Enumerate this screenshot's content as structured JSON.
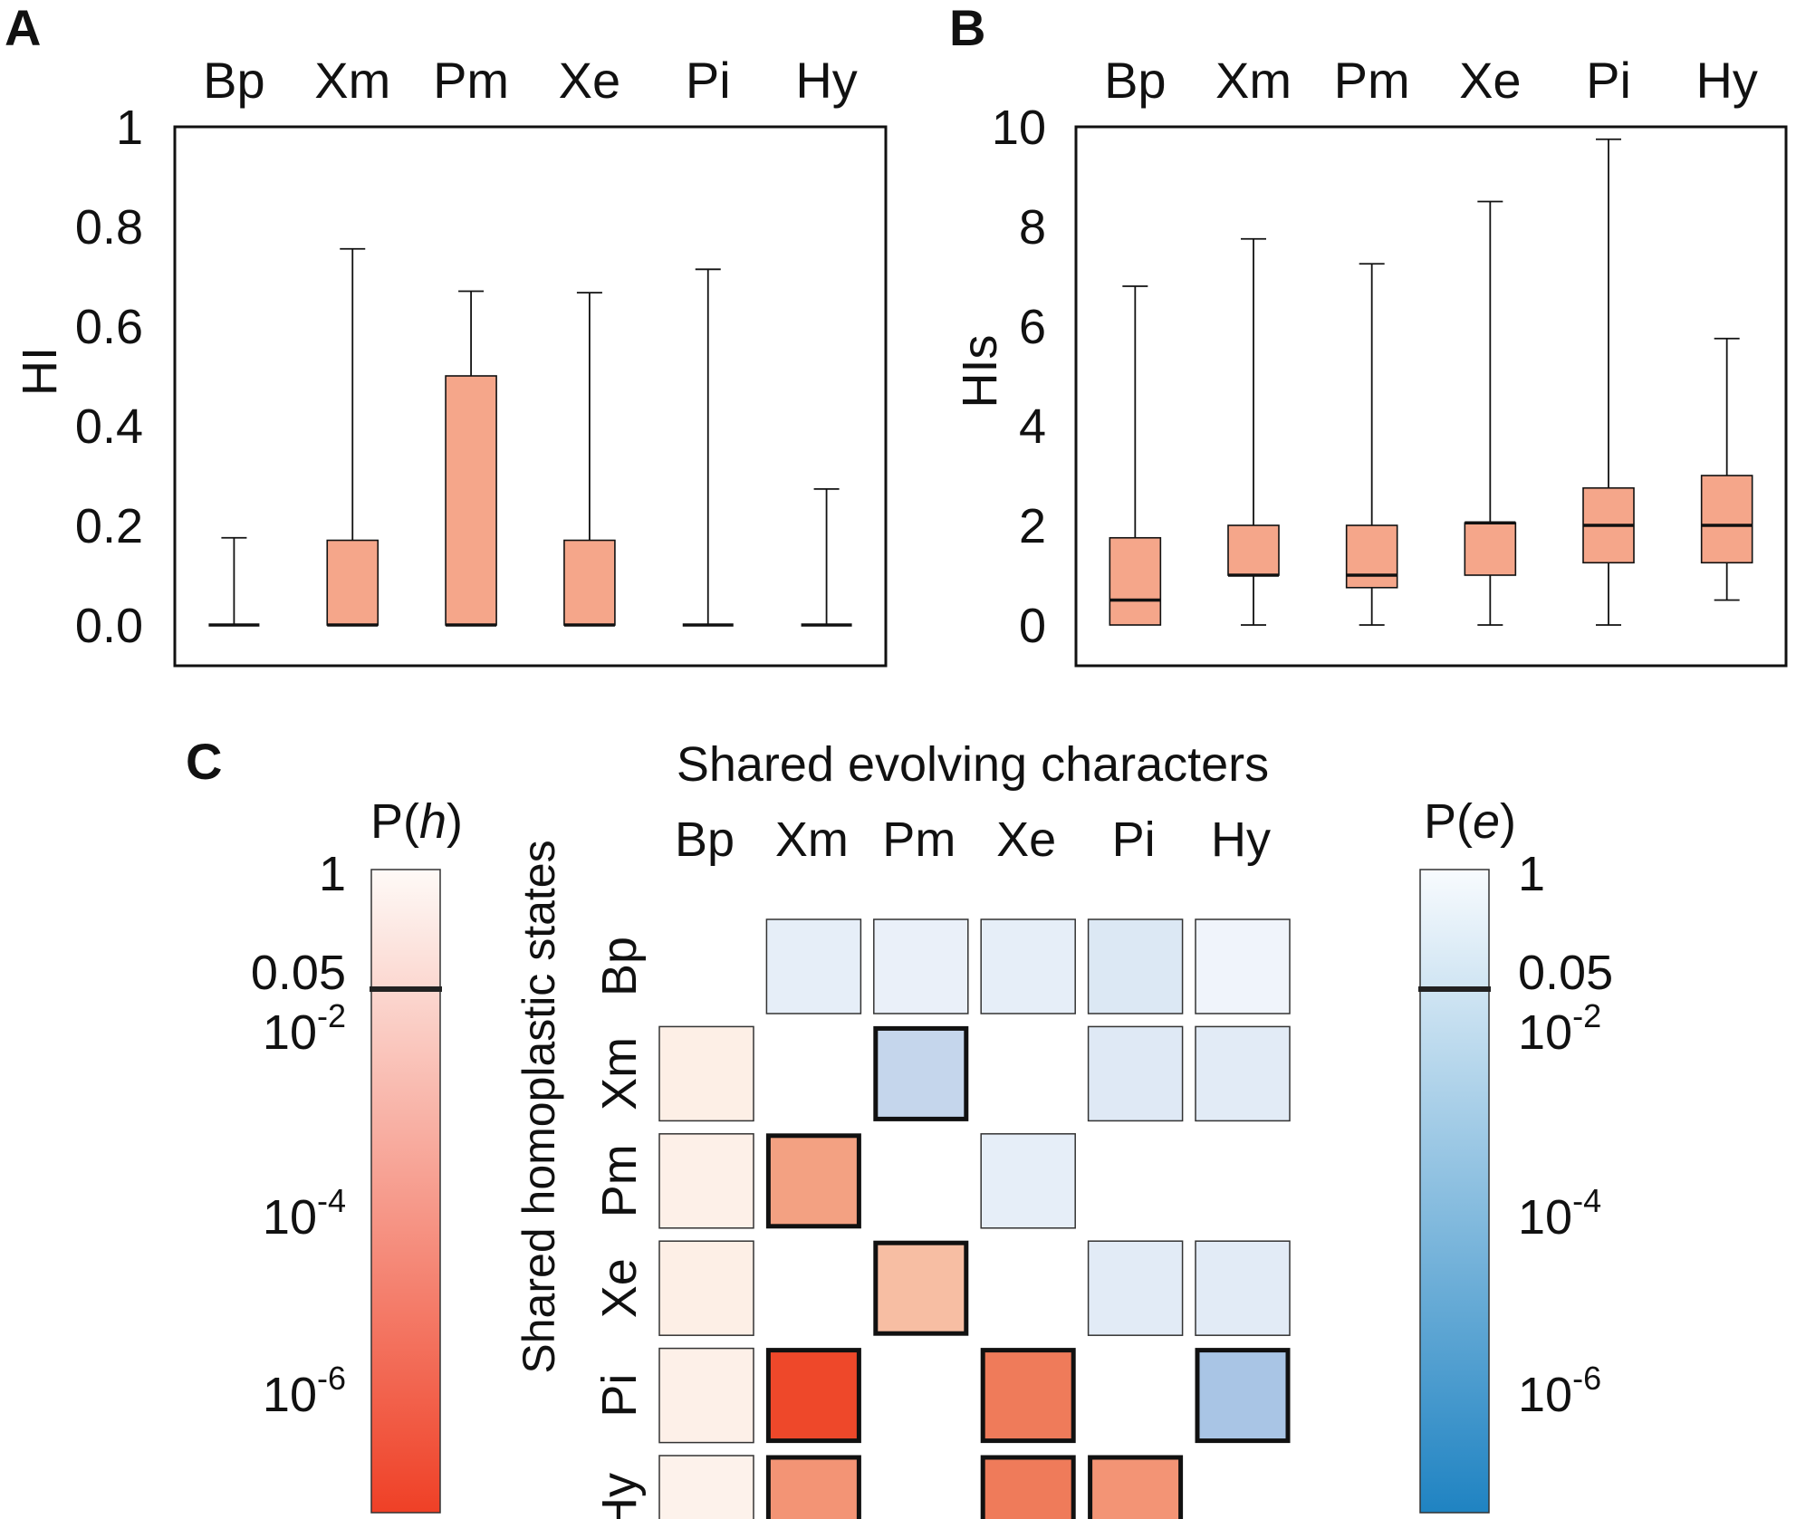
{
  "chart_data": [
    {
      "panel": "A",
      "type": "box",
      "categories": [
        "Bp",
        "Xm",
        "Pm",
        "Xe",
        "Pi",
        "Hy"
      ],
      "ylabel": "HI",
      "ylim": [
        0,
        1
      ],
      "yticks": [
        "0.0",
        "0.2",
        "0.4",
        "0.6",
        "0.8",
        "1"
      ],
      "ytick_values": [
        0,
        0.2,
        0.4,
        0.6,
        0.8,
        1
      ],
      "boxes": [
        {
          "min": 0,
          "q1": 0,
          "median": 0,
          "q3": 0,
          "max": 0.175
        },
        {
          "min": 0,
          "q1": 0,
          "median": 0,
          "q3": 0.17,
          "max": 0.755
        },
        {
          "min": 0,
          "q1": 0,
          "median": 0,
          "q3": 0.5,
          "max": 0.67
        },
        {
          "min": 0,
          "q1": 0,
          "median": 0,
          "q3": 0.17,
          "max": 0.667
        },
        {
          "min": 0,
          "q1": 0,
          "median": 0,
          "q3": 0,
          "max": 0.714
        },
        {
          "min": 0,
          "q1": 0,
          "median": 0,
          "q3": 0,
          "max": 0.273
        }
      ]
    },
    {
      "panel": "B",
      "type": "box",
      "categories": [
        "Bp",
        "Xm",
        "Pm",
        "Xe",
        "Pi",
        "Hy"
      ],
      "ylabel": "HIs",
      "ylim": [
        0,
        10
      ],
      "yticks": [
        "0",
        "2",
        "4",
        "6",
        "8",
        "10"
      ],
      "ytick_values": [
        0,
        2,
        4,
        6,
        8,
        10
      ],
      "boxes": [
        {
          "min": 0,
          "q1": 0,
          "median": 0.5,
          "q3": 1.75,
          "max": 6.8
        },
        {
          "min": 0,
          "q1": 1.0,
          "median": 1.0,
          "q3": 2.0,
          "max": 7.75
        },
        {
          "min": 0,
          "q1": 0.75,
          "median": 1.0,
          "q3": 2.0,
          "max": 7.25
        },
        {
          "min": 0,
          "q1": 1.0,
          "median": 2.05,
          "q3": 2.05,
          "max": 8.5
        },
        {
          "min": 0,
          "q1": 1.25,
          "median": 2.0,
          "q3": 2.75,
          "max": 9.75
        },
        {
          "min": 0.5,
          "q1": 1.25,
          "median": 2.0,
          "q3": 3.0,
          "max": 5.75
        }
      ]
    },
    {
      "panel": "C",
      "type": "heatmap",
      "title": "Shared evolving characters",
      "ylabel": "Shared homoplastic states",
      "columns": [
        "Bp",
        "Xm",
        "Pm",
        "Xe",
        "Pi",
        "Hy"
      ],
      "rows": [
        "Bp",
        "Xm",
        "Pm",
        "Xe",
        "Pi",
        "Hy"
      ],
      "colorbar_h": {
        "label_pre": "P(",
        "label_var": "h",
        "label_post": ")",
        "ticks": [
          {
            "base": "1",
            "exp": ""
          },
          {
            "base": "0.05",
            "exp": ""
          },
          {
            "base": "10",
            "exp": "-2"
          },
          {
            "base": "10",
            "exp": "-4"
          },
          {
            "base": "10",
            "exp": "-6"
          }
        ],
        "tick_values": [
          1,
          0.05,
          0.01,
          0.0001,
          1e-06
        ],
        "color_top": "#fefaf7",
        "color_bottom": "#ef4026",
        "threshold": 0.05
      },
      "colorbar_e": {
        "label_pre": "P(",
        "label_var": "e",
        "label_post": ")",
        "ticks": [
          {
            "base": "1",
            "exp": ""
          },
          {
            "base": "0.05",
            "exp": ""
          },
          {
            "base": "10",
            "exp": "-2"
          },
          {
            "base": "10",
            "exp": "-4"
          },
          {
            "base": "10",
            "exp": "-6"
          }
        ],
        "tick_values": [
          1,
          0.05,
          0.01,
          0.0001,
          1e-06
        ],
        "color_top": "#f8fbfe",
        "color_bottom": "#1f83c2",
        "threshold": 0.05
      },
      "cells": [
        {
          "row": "Bp",
          "col": "Xm",
          "scale": "e",
          "color": "#e6eef8",
          "significant": false
        },
        {
          "row": "Bp",
          "col": "Pm",
          "scale": "e",
          "color": "#eaf0f9",
          "significant": false
        },
        {
          "row": "Bp",
          "col": "Xe",
          "scale": "e",
          "color": "#e6eef8",
          "significant": false
        },
        {
          "row": "Bp",
          "col": "Pi",
          "scale": "e",
          "color": "#dce8f4",
          "significant": false
        },
        {
          "row": "Bp",
          "col": "Hy",
          "scale": "e",
          "color": "#f0f4fb",
          "significant": false
        },
        {
          "row": "Xm",
          "col": "Bp",
          "scale": "h",
          "color": "#fdefe6",
          "significant": false
        },
        {
          "row": "Xm",
          "col": "Pm",
          "scale": "e",
          "color": "#c5d6ec",
          "significant": true
        },
        {
          "row": "Xm",
          "col": "Pi",
          "scale": "e",
          "color": "#dfe9f5",
          "significant": false
        },
        {
          "row": "Xm",
          "col": "Hy",
          "scale": "e",
          "color": "#e2ebf6",
          "significant": false
        },
        {
          "row": "Pm",
          "col": "Bp",
          "scale": "h",
          "color": "#fdf0e8",
          "significant": false
        },
        {
          "row": "Pm",
          "col": "Xm",
          "scale": "h",
          "color": "#f3a182",
          "significant": true
        },
        {
          "row": "Pm",
          "col": "Xe",
          "scale": "e",
          "color": "#e6eef8",
          "significant": false
        },
        {
          "row": "Xe",
          "col": "Bp",
          "scale": "h",
          "color": "#fdefe6",
          "significant": false
        },
        {
          "row": "Xe",
          "col": "Pm",
          "scale": "h",
          "color": "#f7bea3",
          "significant": true
        },
        {
          "row": "Xe",
          "col": "Pi",
          "scale": "e",
          "color": "#e2ebf6",
          "significant": false
        },
        {
          "row": "Xe",
          "col": "Hy",
          "scale": "e",
          "color": "#e2ebf6",
          "significant": false
        },
        {
          "row": "Pi",
          "col": "Bp",
          "scale": "h",
          "color": "#fdf0e8",
          "significant": false
        },
        {
          "row": "Pi",
          "col": "Xm",
          "scale": "h",
          "color": "#ee482a",
          "significant": true
        },
        {
          "row": "Pi",
          "col": "Xe",
          "scale": "h",
          "color": "#ef7b5a",
          "significant": true
        },
        {
          "row": "Pi",
          "col": "Hy",
          "scale": "e",
          "color": "#a9c5e5",
          "significant": true
        },
        {
          "row": "Hy",
          "col": "Bp",
          "scale": "h",
          "color": "#fdf2eb",
          "significant": false
        },
        {
          "row": "Hy",
          "col": "Xm",
          "scale": "h",
          "color": "#f39475",
          "significant": true
        },
        {
          "row": "Hy",
          "col": "Xe",
          "scale": "h",
          "color": "#ef7b5a",
          "significant": true
        },
        {
          "row": "Hy",
          "col": "Pi",
          "scale": "h",
          "color": "#f39475",
          "significant": true
        }
      ]
    }
  ],
  "colors": {
    "box_fill": "#f5a68a",
    "axis": "#111111",
    "threshold_line": "#222222",
    "cell_border": "#333333"
  }
}
